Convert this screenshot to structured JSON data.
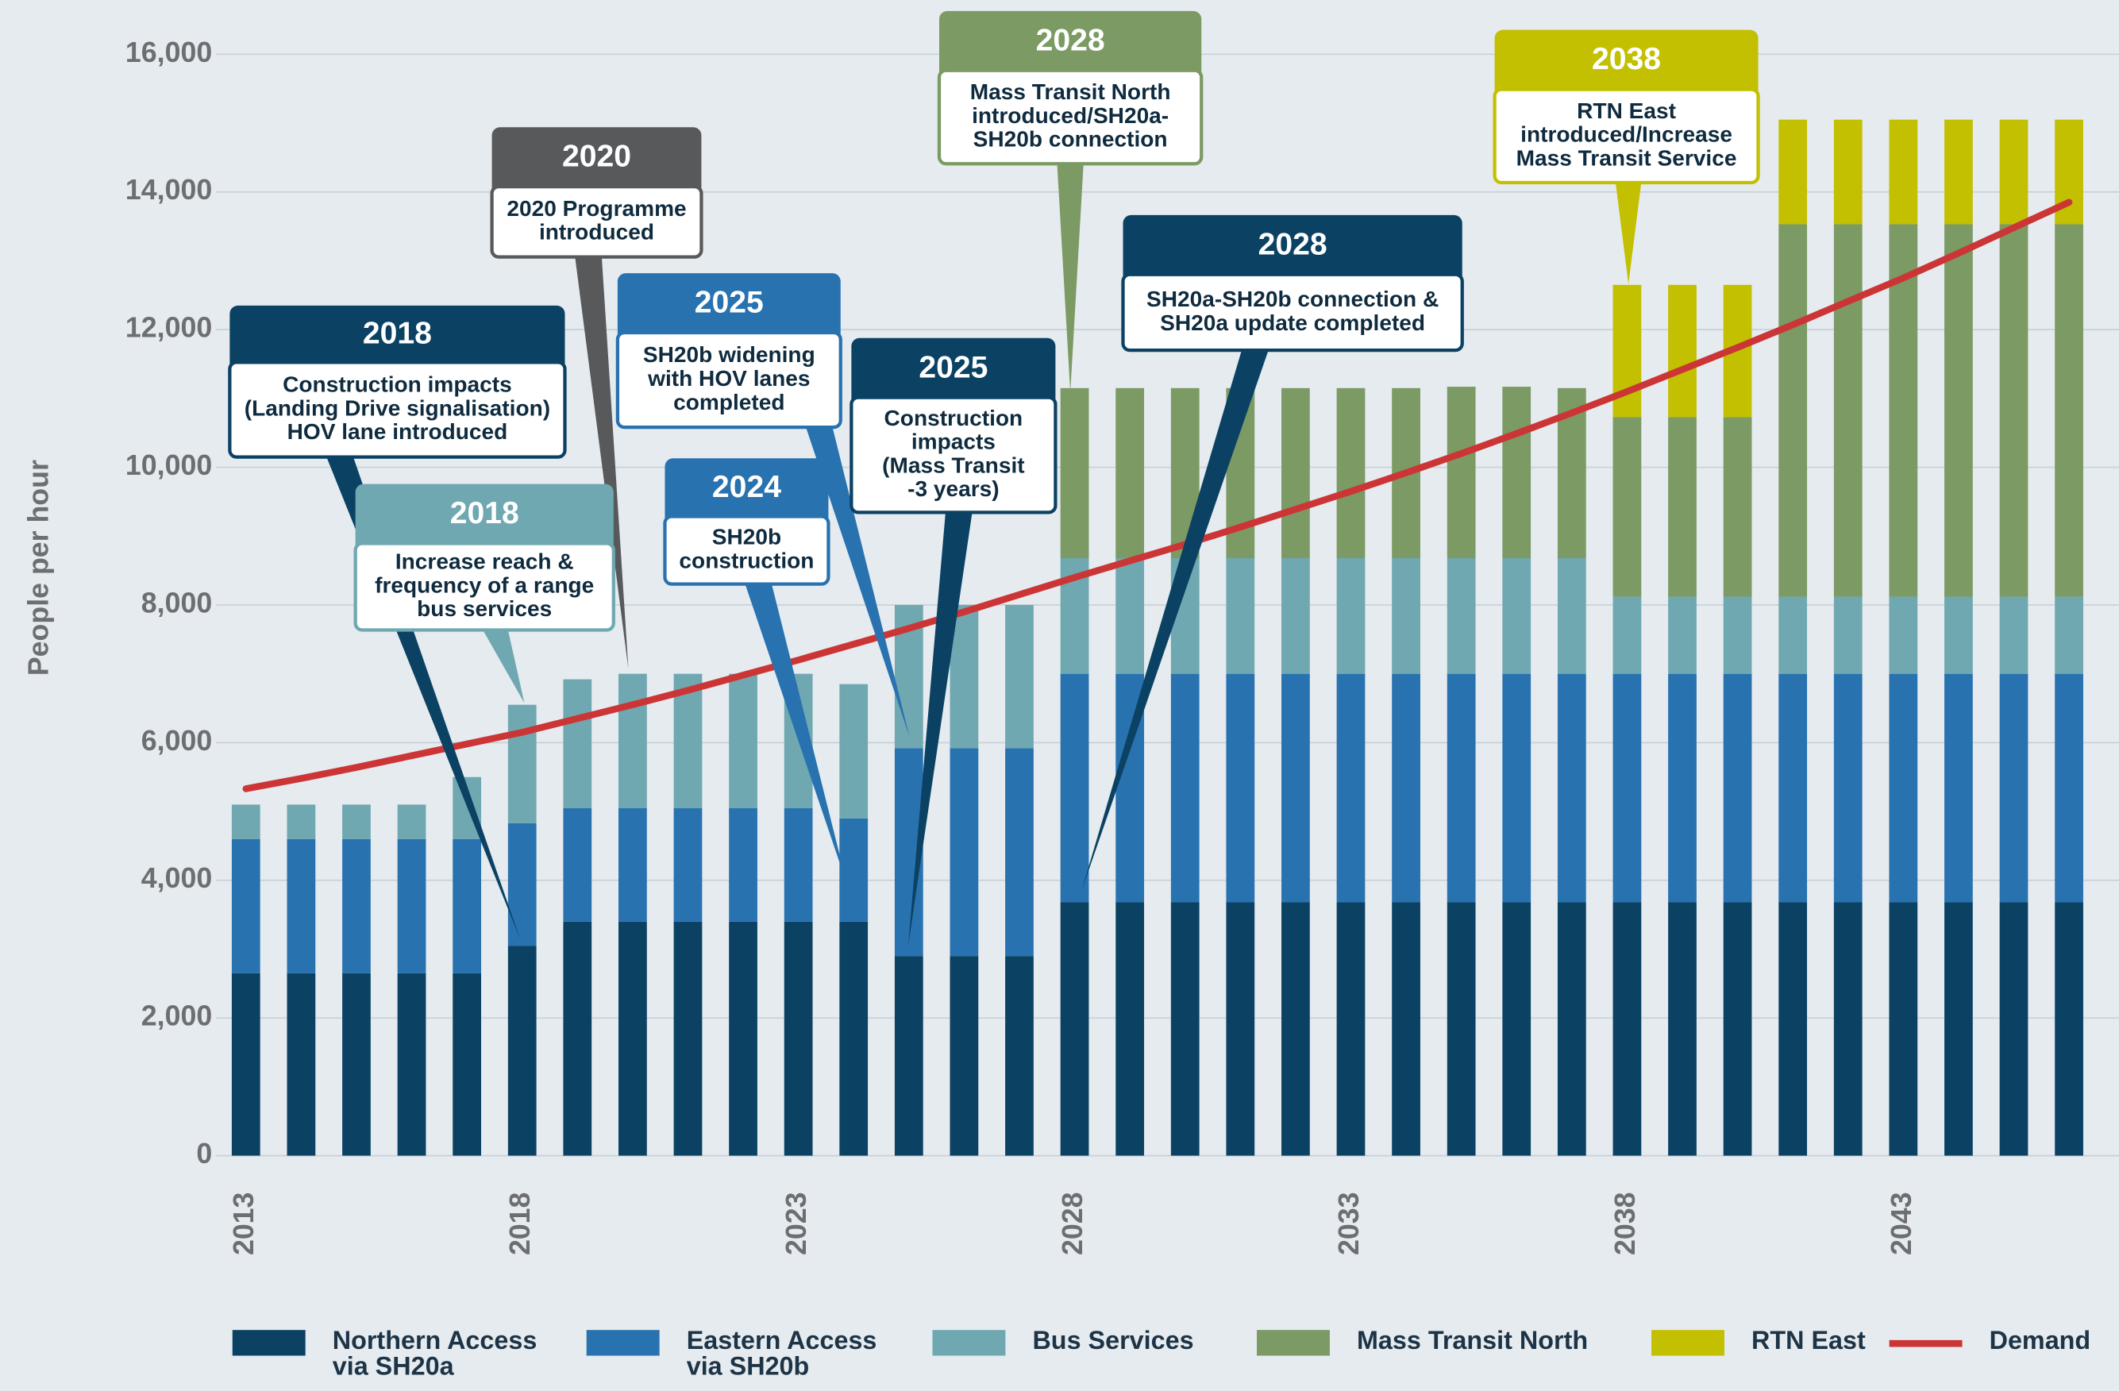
{
  "chart_data": {
    "type": "bar",
    "stacked": true,
    "y_label": "People per hour",
    "categories": [
      2013,
      null,
      null,
      null,
      null,
      2018,
      null,
      null,
      null,
      null,
      2023,
      null,
      null,
      null,
      null,
      2028,
      null,
      null,
      null,
      null,
      2033,
      null,
      null,
      null,
      null,
      2038,
      null,
      null,
      null,
      null,
      2043,
      null,
      null,
      null
    ],
    "ylim": [
      0,
      16000
    ],
    "yticks": [
      {
        "value": 0,
        "label": "0"
      },
      {
        "value": 2000,
        "label": "2,000"
      },
      {
        "value": 4000,
        "label": "4,000"
      },
      {
        "value": 6000,
        "label": "6,000"
      },
      {
        "value": 8000,
        "label": "8,000"
      },
      {
        "value": 10000,
        "label": "10,000"
      },
      {
        "value": 12000,
        "label": "12,000"
      },
      {
        "value": 14000,
        "label": "14,000"
      },
      {
        "value": 16000,
        "label": "16,000"
      }
    ],
    "grid": true,
    "legend": "bottom",
    "series": [
      {
        "name": "Northern Access via SH20a",
        "color": "#0b4264",
        "values": [
          2650,
          2650,
          2650,
          2650,
          2650,
          3050,
          3400,
          3400,
          3400,
          3400,
          3400,
          3400,
          2900,
          2900,
          2900,
          3680,
          3680,
          3680,
          3680,
          3680,
          3680,
          3680,
          3680,
          3680,
          3680,
          3680,
          3680,
          3680,
          3680,
          3680,
          3680,
          3680,
          3680,
          3680
        ]
      },
      {
        "name": "Eastern Access via SH20b",
        "color": "#2872b0",
        "values": [
          1950,
          1950,
          1950,
          1950,
          1950,
          1780,
          1650,
          1650,
          1650,
          1650,
          1650,
          1500,
          3020,
          3020,
          3020,
          3320,
          3320,
          3320,
          3320,
          3320,
          3320,
          3320,
          3320,
          3320,
          3320,
          3320,
          3320,
          3320,
          3320,
          3320,
          3320,
          3320,
          3320,
          3320
        ]
      },
      {
        "name": "Bus Services",
        "color": "#6fa8b1",
        "values": [
          500,
          500,
          500,
          500,
          900,
          1720,
          1870,
          1950,
          1950,
          1950,
          1950,
          1950,
          2080,
          2080,
          2080,
          1680,
          1680,
          1680,
          1680,
          1680,
          1680,
          1680,
          1680,
          1680,
          1680,
          1120,
          1120,
          1120,
          1120,
          1120,
          1120,
          1120,
          1120,
          1120
        ]
      },
      {
        "name": "Mass Transit North",
        "color": "#7b9a64",
        "values": [
          0,
          0,
          0,
          0,
          0,
          0,
          0,
          0,
          0,
          0,
          0,
          0,
          0,
          0,
          0,
          2470,
          2470,
          2470,
          2470,
          2470,
          2470,
          2470,
          2490,
          2490,
          2470,
          2610,
          2610,
          2610,
          5410,
          5410,
          5410,
          5410,
          5410,
          5410
        ]
      },
      {
        "name": "RTN East",
        "color": "#c2c000",
        "values": [
          0,
          0,
          0,
          0,
          0,
          0,
          0,
          0,
          0,
          0,
          0,
          0,
          0,
          0,
          0,
          0,
          0,
          0,
          0,
          0,
          0,
          0,
          0,
          0,
          0,
          1920,
          1920,
          1920,
          1520,
          1520,
          1520,
          1520,
          1520,
          1520
        ]
      },
      {
        "name": "Demand",
        "color": "#cc3535",
        "type": "line",
        "values": [
          5330,
          5480,
          5640,
          5810,
          5980,
          6150,
          6350,
          6550,
          6760,
          6980,
          7200,
          7430,
          7660,
          7900,
          8150,
          8400,
          8640,
          8880,
          9130,
          9390,
          9650,
          9920,
          10200,
          10490,
          10790,
          11100,
          11420,
          11740,
          12070,
          12410,
          12750,
          13110,
          13480,
          13850
        ]
      }
    ],
    "annotations": [
      {
        "year": "2018",
        "color": "#0b4264",
        "lines": [
          "Construction impacts",
          "(Landing Drive signalisation)",
          "HOV lane introduced"
        ]
      },
      {
        "year": "2018",
        "color": "#6fa8b1",
        "lines": [
          "Increase reach &",
          "frequency of a range",
          "bus services"
        ]
      },
      {
        "year": "2020",
        "color": "#58595b",
        "lines": [
          "2020 Programme",
          "introduced"
        ]
      },
      {
        "year": "2025",
        "color": "#2872b0",
        "lines": [
          "SH20b widening",
          "with HOV lanes",
          "completed"
        ]
      },
      {
        "year": "2024",
        "color": "#2872b0",
        "lines": [
          "SH20b",
          "construction"
        ]
      },
      {
        "year": "2025",
        "color": "#0b4264",
        "lines": [
          "Construction",
          "impacts",
          "(Mass Transit",
          "-3 years)"
        ]
      },
      {
        "year": "2028",
        "color": "#7b9a64",
        "lines": [
          "Mass Transit North",
          "introduced/SH20a-",
          "SH20b connection"
        ]
      },
      {
        "year": "2028",
        "color": "#0b4264",
        "lines": [
          "SH20a-SH20b connection &",
          "SH20a update completed"
        ]
      },
      {
        "year": "2038",
        "color": "#c2c000",
        "lines": [
          "RTN East",
          "introduced/Increase",
          "Mass Transit Service"
        ]
      }
    ]
  }
}
